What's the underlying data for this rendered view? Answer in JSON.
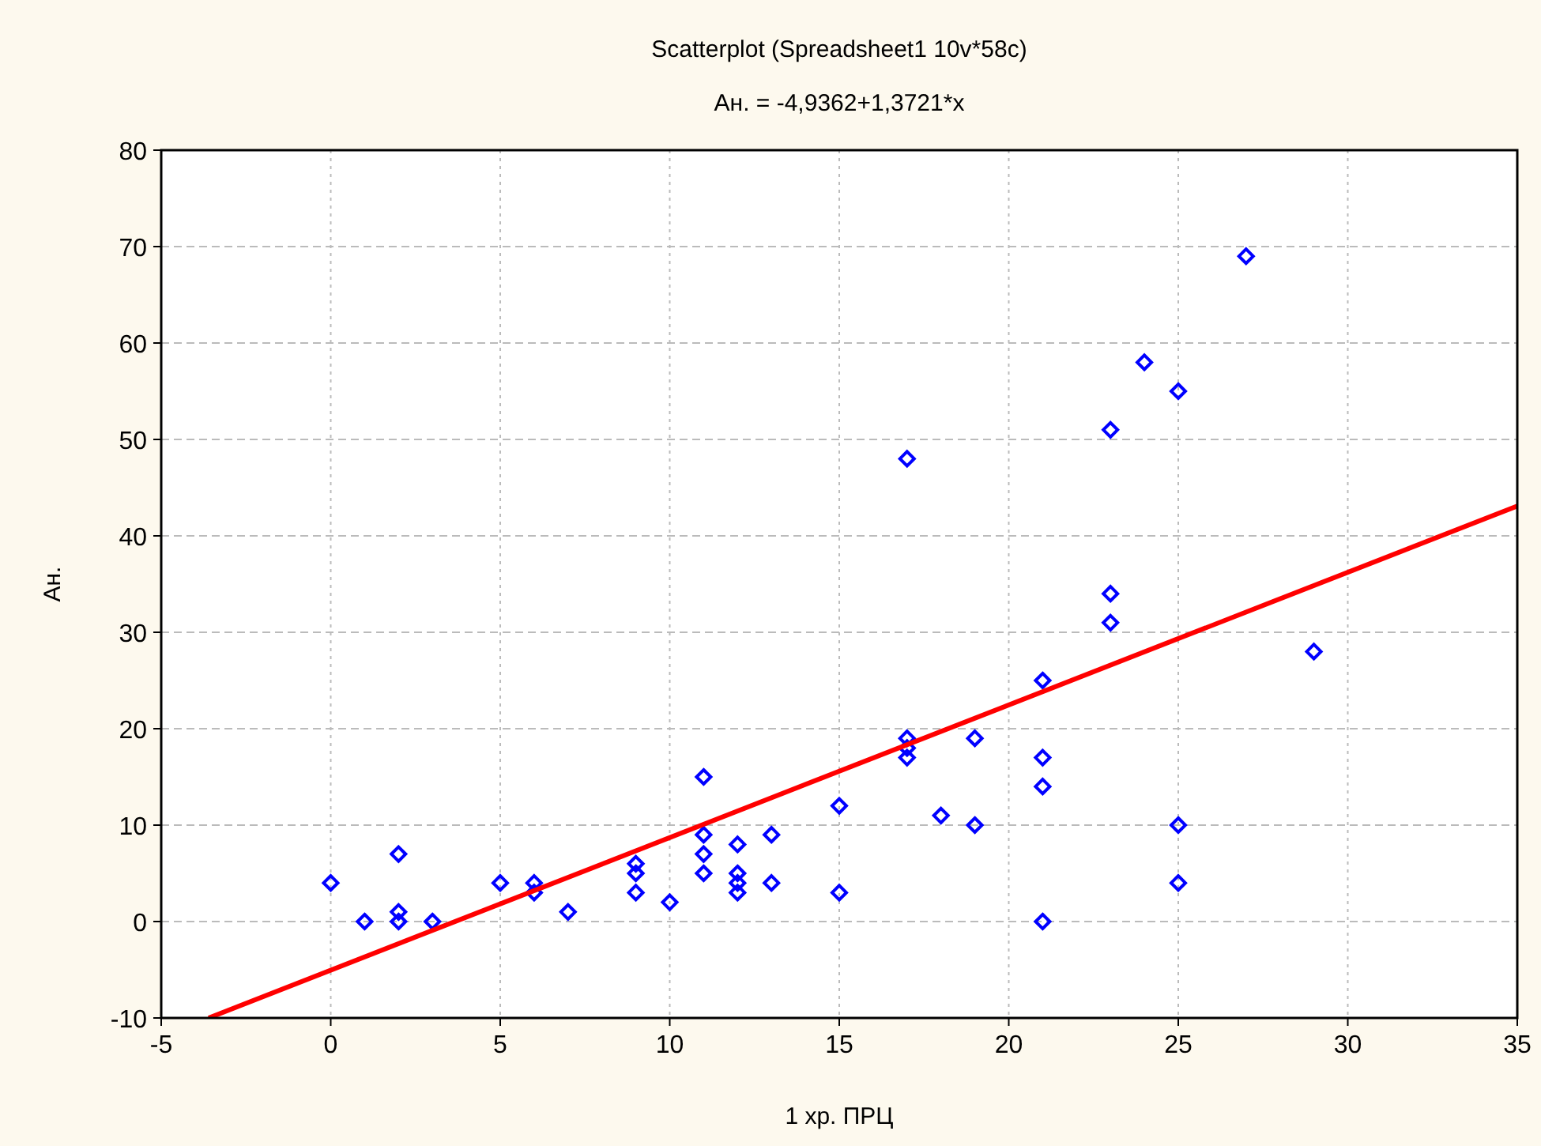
{
  "chart_data": {
    "type": "scatter",
    "title": "Scatterplot (Spreadsheet1 10v*58c)",
    "subtitle": "Ан. = -4,9362+1,3721*x",
    "xlabel": "1 хр. ПРЦ",
    "ylabel": "Ан.",
    "xlim": [
      -5,
      35
    ],
    "ylim": [
      -10,
      80
    ],
    "xticks": [
      -5,
      0,
      5,
      10,
      15,
      20,
      25,
      30,
      35
    ],
    "yticks": [
      -10,
      0,
      10,
      20,
      30,
      40,
      50,
      60,
      70,
      80
    ],
    "grid": true,
    "series": [
      {
        "marker": "diamond",
        "color": "#0000ff",
        "x": [
          0,
          1,
          2,
          2,
          2,
          3,
          5,
          6,
          6,
          7,
          9,
          9,
          9,
          10,
          11,
          11,
          11,
          11,
          12,
          12,
          12,
          12,
          13,
          13,
          15,
          15,
          17,
          17,
          17,
          17,
          18,
          19,
          19,
          21,
          21,
          21,
          21,
          23,
          23,
          23,
          24,
          25,
          25,
          25,
          27,
          29
        ],
        "values": [
          4,
          0,
          7,
          1,
          0,
          0,
          4,
          4,
          3,
          1,
          6,
          5,
          3,
          2,
          15,
          9,
          7,
          5,
          8,
          5,
          4,
          3,
          9,
          4,
          12,
          3,
          48,
          19,
          18,
          17,
          11,
          19,
          10,
          25,
          17,
          14,
          0,
          51,
          34,
          31,
          58,
          55,
          10,
          4,
          69,
          28
        ]
      },
      {
        "type": "line",
        "color": "#ff0000",
        "x": [
          -3.6,
          35
        ],
        "values": [
          -10,
          43.1
        ]
      }
    ]
  }
}
